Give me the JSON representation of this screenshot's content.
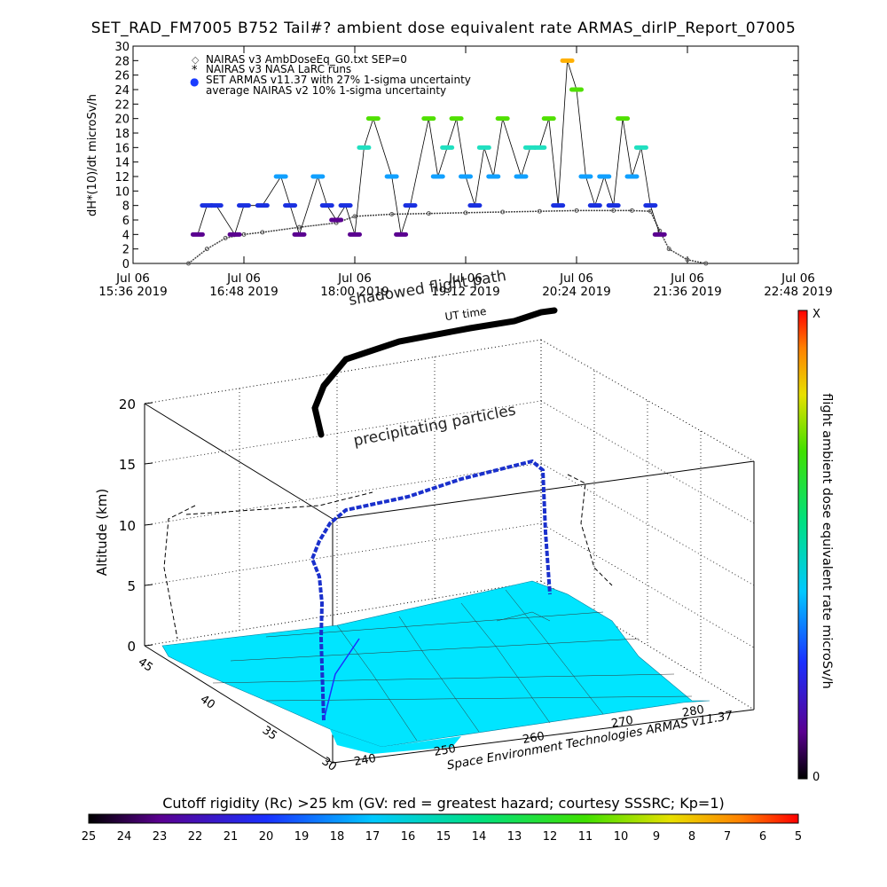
{
  "title": "SET_RAD_FM7005   B752 Tail#? ambient dose equivalent rate ARMAS_dirIP_Report_07005",
  "chart_data": [
    {
      "type": "scatter",
      "ylabel": "dH*(10)/dt microSv/h",
      "ylim": [
        0,
        30
      ],
      "yticks": [
        0,
        2,
        4,
        6,
        8,
        10,
        12,
        14,
        16,
        18,
        20,
        22,
        24,
        26,
        28,
        30
      ],
      "xlim_hours": [
        15.6,
        22.8
      ],
      "xticks": [
        {
          "line1": "Jul 06",
          "line2": "15:36 2019"
        },
        {
          "line1": "Jul 06",
          "line2": "16:48 2019"
        },
        {
          "line1": "Jul 06",
          "line2": "18:00 2019"
        },
        {
          "line1": "Jul 06",
          "line2": "19:12 2019"
        },
        {
          "line1": "Jul 06",
          "line2": "20:24 2019"
        },
        {
          "line1": "Jul 06",
          "line2": "21:36 2019"
        },
        {
          "line1": "Jul 06",
          "line2": "22:48 2019"
        }
      ],
      "legend": [
        {
          "symbol": "◇",
          "text": "NAIRAS v3 AmbDoseEq_G0.txt SEP=0"
        },
        {
          "symbol": "*",
          "text": "NAIRAS v3 NASA LaRC runs"
        },
        {
          "symbol": "●",
          "text": "SET ARMAS v11.37 with 27% 1-sigma uncertainty"
        },
        {
          "symbol": "",
          "text": "average NAIRAS v2 10% 1-sigma uncertainty"
        }
      ],
      "series": [
        {
          "name": "NAIRAS v3 AmbDoseEq_G0.txt SEP=0",
          "x": [
            16.2,
            16.4,
            16.6,
            16.8,
            17.0,
            17.4,
            17.8,
            18.0,
            18.4,
            18.8,
            19.2,
            19.6,
            20.0,
            20.4,
            20.8,
            21.0,
            21.2,
            21.3,
            21.4,
            21.6,
            21.8
          ],
          "y": [
            0,
            2,
            3.5,
            4,
            4.3,
            5,
            5.6,
            6.5,
            6.8,
            6.9,
            7,
            7.1,
            7.2,
            7.3,
            7.3,
            7.3,
            7.2,
            4.5,
            2,
            0.5,
            0
          ]
        },
        {
          "name": "SET ARMAS v11.37 with 27% 1-sigma uncertainty",
          "x": [
            16.3,
            16.4,
            16.5,
            16.7,
            16.8,
            17.0,
            17.2,
            17.3,
            17.4,
            17.6,
            17.7,
            17.8,
            17.9,
            18.0,
            18.1,
            18.2,
            18.4,
            18.5,
            18.6,
            18.8,
            18.9,
            19.0,
            19.1,
            19.2,
            19.3,
            19.4,
            19.5,
            19.6,
            19.8,
            19.9,
            20.0,
            20.1,
            20.2,
            20.3,
            20.4,
            20.5,
            20.6,
            20.7,
            20.8,
            20.9,
            21.0,
            21.1,
            21.2,
            21.3
          ],
          "y": [
            4,
            8,
            8,
            4,
            8,
            8,
            12,
            8,
            4,
            12,
            8,
            6,
            8,
            4,
            16,
            20,
            12,
            4,
            8,
            20,
            12,
            16,
            20,
            12,
            8,
            16,
            12,
            20,
            12,
            16,
            16,
            20,
            8,
            28,
            24,
            12,
            8,
            12,
            8,
            20,
            12,
            16,
            8,
            4
          ]
        }
      ]
    },
    {
      "type": "3d-trajectory",
      "zlabel": "Altitude (km)",
      "zticks": [
        0,
        5,
        10,
        15,
        20
      ],
      "lat_ticks": [
        "45",
        "40",
        "35",
        "30"
      ],
      "lon_ticks": [
        "240",
        "250",
        "260",
        "270",
        "280"
      ],
      "colorbar_label": "flight ambient dose equivalent rate microSv/h",
      "colorbar_top": "X",
      "colorbar_bottom": "0"
    }
  ],
  "labels": {
    "shadowed": "shadowed flight path",
    "ut_time": "UT time",
    "precipitating": "precipitating particles",
    "credit": "Space Environment Technologies ARMAS v11.37",
    "cutoff_caption": "Cutoff rigidity (Rc) >25 km (GV: red = greatest hazard; courtesy SSSRC; Kp=1)"
  },
  "cutoff_colorbar_ticks": [
    "25",
    "24",
    "23",
    "22",
    "21",
    "20",
    "19",
    "18",
    "17",
    "16",
    "15",
    "14",
    "13",
    "12",
    "11",
    "10",
    "9",
    "8",
    "7",
    "6",
    "5"
  ],
  "colors": {
    "armas_dot": "#1a3cff",
    "nairas": "#444444",
    "map_fill": "#00e5ff",
    "sheet_top": "#f0a020",
    "sheet_mid": "#20d020"
  }
}
